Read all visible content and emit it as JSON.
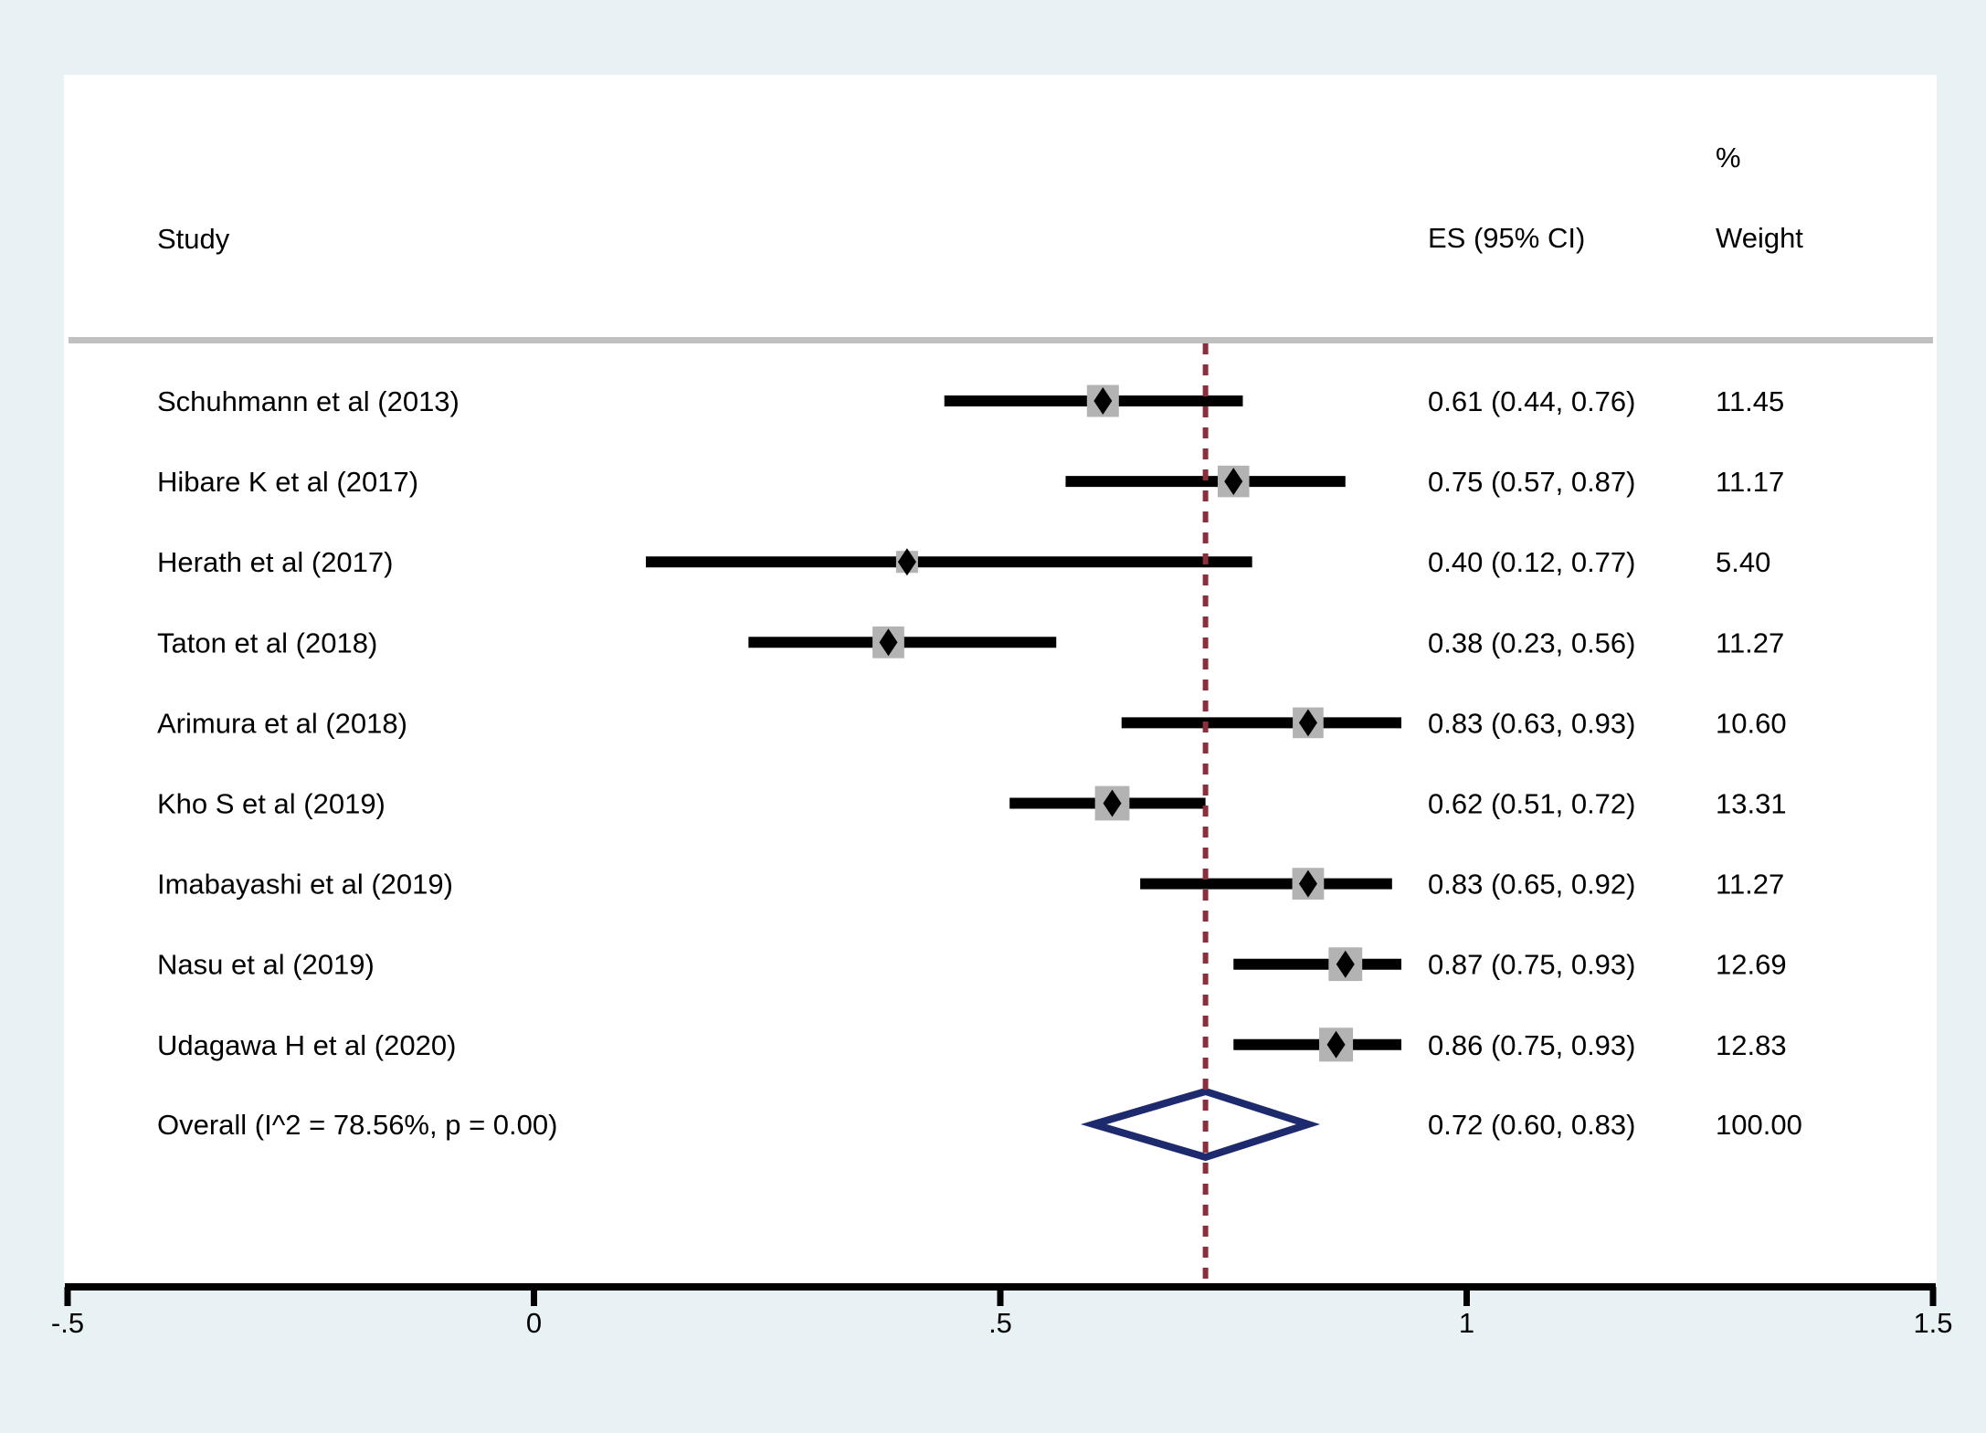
{
  "chart_data": {
    "type": "forest",
    "headers": {
      "study": "Study",
      "es": "ES (95% CI)",
      "weight_top": "%",
      "weight": "Weight"
    },
    "studies": [
      {
        "label": "Schuhmann et al (2013)",
        "es": 0.61,
        "lo": 0.44,
        "hi": 0.76,
        "es_text": "0.61 (0.44, 0.76)",
        "weight": 11.45,
        "weight_text": "11.45"
      },
      {
        "label": "Hibare K et al (2017)",
        "es": 0.75,
        "lo": 0.57,
        "hi": 0.87,
        "es_text": "0.75 (0.57, 0.87)",
        "weight": 11.17,
        "weight_text": "11.17"
      },
      {
        "label": "Herath et al (2017)",
        "es": 0.4,
        "lo": 0.12,
        "hi": 0.77,
        "es_text": "0.40 (0.12, 0.77)",
        "weight": 5.4,
        "weight_text": "5.40"
      },
      {
        "label": "Taton et al (2018)",
        "es": 0.38,
        "lo": 0.23,
        "hi": 0.56,
        "es_text": "0.38 (0.23, 0.56)",
        "weight": 11.27,
        "weight_text": "11.27"
      },
      {
        "label": "Arimura et al (2018)",
        "es": 0.83,
        "lo": 0.63,
        "hi": 0.93,
        "es_text": "0.83 (0.63, 0.93)",
        "weight": 10.6,
        "weight_text": "10.60"
      },
      {
        "label": "Kho S et al (2019)",
        "es": 0.62,
        "lo": 0.51,
        "hi": 0.72,
        "es_text": "0.62 (0.51, 0.72)",
        "weight": 13.31,
        "weight_text": "13.31"
      },
      {
        "label": "Imabayashi et al (2019)",
        "es": 0.83,
        "lo": 0.65,
        "hi": 0.92,
        "es_text": "0.83 (0.65, 0.92)",
        "weight": 11.27,
        "weight_text": "11.27"
      },
      {
        "label": "Nasu et al (2019)",
        "es": 0.87,
        "lo": 0.75,
        "hi": 0.93,
        "es_text": "0.87 (0.75, 0.93)",
        "weight": 12.69,
        "weight_text": "12.69"
      },
      {
        "label": "Udagawa H et al (2020)",
        "es": 0.86,
        "lo": 0.75,
        "hi": 0.93,
        "es_text": "0.86 (0.75, 0.93)",
        "weight": 12.83,
        "weight_text": "12.83"
      }
    ],
    "overall": {
      "label": "Overall  (I^2 = 78.56%, p = 0.00)",
      "es": 0.72,
      "lo": 0.6,
      "hi": 0.83,
      "es_text": "0.72 (0.60, 0.83)",
      "weight": 100.0,
      "weight_text": "100.00"
    },
    "xaxis": {
      "range": [
        -0.5,
        1.5
      ],
      "ticks": [
        -0.5,
        0,
        0.5,
        1,
        1.5
      ],
      "tick_labels": [
        "-.5",
        "0",
        ".5",
        "1",
        "1.5"
      ]
    },
    "reference_line": 0.72,
    "colors": {
      "background": "#e8f1f3",
      "panel": "#ffffff",
      "separator": "#c0c0c0",
      "ci_line": "#000000",
      "weight_box": "#b3b3b3",
      "point": "#000000",
      "overall_diamond": "#1e2a6e",
      "reference_line": "#8b2f3c"
    }
  }
}
